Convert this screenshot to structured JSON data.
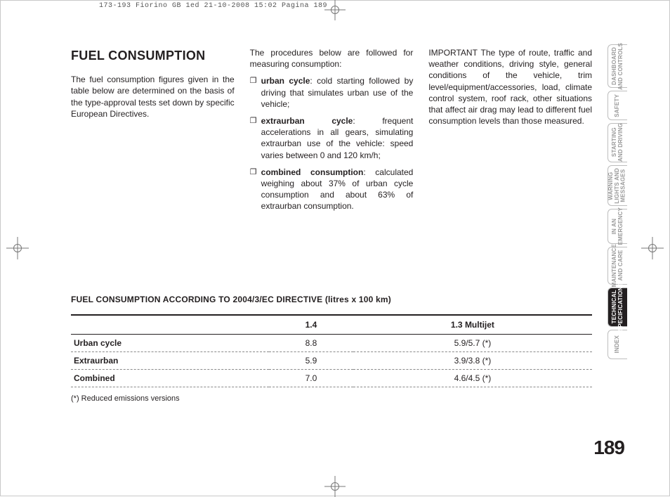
{
  "print_header": "173-193 Fiorino GB 1ed  21-10-2008  15:02  Pagina 189",
  "page_number": "189",
  "title": "FUEL CONSUMPTION",
  "col1": {
    "p1": "The fuel consumption figures given in the table below are determined on the basis of the type-approval tests set down by specific European Directives."
  },
  "col2": {
    "intro": "The procedures below are followed for measuring consumption:",
    "items": [
      {
        "label": "urban cycle",
        "text": ": cold starting followed by driving that simulates urban use of the vehicle;"
      },
      {
        "label": "extraurban cycle",
        "text": ": frequent accelerations in all gears, simulating extraurban use of the vehicle: speed varies between 0 and 120 km/h;"
      },
      {
        "label": "combined consumption",
        "text": ": calculated weighing about 37% of urban cycle consumption and about 63% of extraurban consumption."
      }
    ]
  },
  "col3": {
    "p1": "IMPORTANT The type of route, traffic and weather conditions, driving style, general conditions of the vehicle, trim level/equipment/accessories, load, climate control system, roof rack, other situations that affect air drag may lead to different fuel consumption levels than those measured."
  },
  "table": {
    "title": "FUEL CONSUMPTION ACCORDING TO 2004/3/EC DIRECTIVE (litres x 100 km)",
    "headers": [
      "",
      "1.4",
      "1.3 Multijet"
    ],
    "rows": [
      {
        "label": "Urban cycle",
        "c1": "8.8",
        "c2": "5.9/5.7 (*)"
      },
      {
        "label": "Extraurban",
        "c1": "5.9",
        "c2": "3.9/3.8 (*)"
      },
      {
        "label": "Combined",
        "c1": "7.0",
        "c2": "4.6/4.5 (*)"
      }
    ],
    "footnote": "(*) Reduced emissions versions"
  },
  "tabs": [
    "DASHBOARD\nAND CONTROLS",
    "SAFETY",
    "STARTING\nAND DRIVING",
    "WARNING\nLIGHTS AND\nMESSAGES",
    "IN AN\nEMERGENCY",
    "MAINTENANCE\nAND CARE",
    "TECHNICAL\nSPECIFICATIONS",
    "INDEX"
  ],
  "active_tab_index": 6
}
